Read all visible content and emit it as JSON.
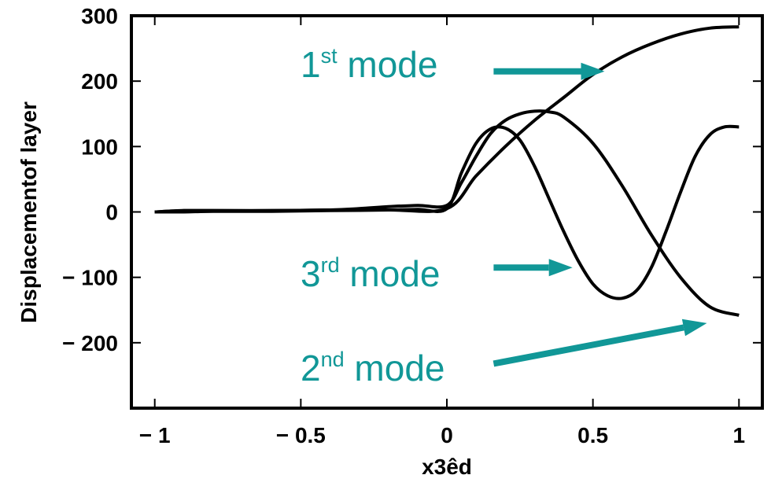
{
  "chart_data": {
    "type": "line",
    "xlabel": "x3êd",
    "ylabel": "Displacementof layer",
    "xlim": [
      -1.08,
      1.08
    ],
    "ylim": [
      -300,
      300
    ],
    "grid": false,
    "legend": "none",
    "x_ticks": [
      {
        "value": -1,
        "label": "− 1"
      },
      {
        "value": -0.5,
        "label": "− 0.5"
      },
      {
        "value": 0,
        "label": "0"
      },
      {
        "value": 0.5,
        "label": "0.5"
      },
      {
        "value": 1,
        "label": "1"
      }
    ],
    "y_ticks": [
      {
        "value": 300,
        "label": "300"
      },
      {
        "value": 200,
        "label": "200"
      },
      {
        "value": 100,
        "label": "100"
      },
      {
        "value": 0,
        "label": "0"
      },
      {
        "value": -100,
        "label": "− 100"
      },
      {
        "value": -200,
        "label": "− 200"
      }
    ],
    "series": [
      {
        "x": [
          -1,
          -0.9,
          -0.8,
          -0.6,
          -0.4,
          -0.2,
          0,
          0.1,
          0.2,
          0.3,
          0.4,
          0.5,
          0.6,
          0.7,
          0.8,
          0.9,
          1
        ],
        "y": [
          0,
          0,
          1,
          1,
          2,
          3,
          5,
          55,
          100,
          140,
          175,
          210,
          237,
          257,
          272,
          281,
          283
        ]
      },
      {
        "x": [
          -1,
          -0.9,
          -0.8,
          -0.6,
          -0.4,
          -0.3,
          -0.2,
          -0.1,
          0,
          0.05,
          0.1,
          0.15,
          0.2,
          0.25,
          0.3,
          0.35,
          0.4,
          0.5,
          0.6,
          0.7,
          0.8,
          0.9,
          1
        ],
        "y": [
          0,
          2,
          2,
          2,
          3,
          5,
          8,
          10,
          10,
          45,
          85,
          120,
          140,
          150,
          154,
          153,
          145,
          105,
          40,
          -35,
          -100,
          -145,
          -158
        ]
      },
      {
        "x": [
          -1,
          -0.9,
          -0.8,
          -0.6,
          -0.4,
          -0.3,
          -0.2,
          -0.1,
          0,
          0.05,
          0.1,
          0.15,
          0.2,
          0.25,
          0.3,
          0.35,
          0.4,
          0.45,
          0.5,
          0.55,
          0.6,
          0.65,
          0.7,
          0.75,
          0.8,
          0.85,
          0.9,
          0.95,
          1
        ],
        "y": [
          0,
          2,
          2,
          2,
          3,
          3,
          3,
          4,
          5,
          60,
          105,
          127,
          128,
          110,
          70,
          20,
          -30,
          -75,
          -110,
          -128,
          -132,
          -120,
          -85,
          -30,
          30,
          85,
          118,
          130,
          130
        ]
      }
    ],
    "annotations": [
      {
        "base": "1",
        "sup": "st",
        "rest": " mode",
        "arrow": {
          "from": [
            0.16,
            215
          ],
          "to": [
            0.54,
            215
          ]
        }
      },
      {
        "base": "3",
        "sup": "rd",
        "rest": " mode",
        "arrow": {
          "from": [
            0.16,
            -85
          ],
          "to": [
            0.43,
            -85
          ]
        }
      },
      {
        "base": "2",
        "sup": "nd",
        "rest": " mode",
        "arrow": {
          "from": [
            0.16,
            -232
          ],
          "to": [
            0.89,
            -170
          ]
        }
      }
    ],
    "colors": {
      "line": "#000000",
      "annotation": "#119797"
    }
  }
}
